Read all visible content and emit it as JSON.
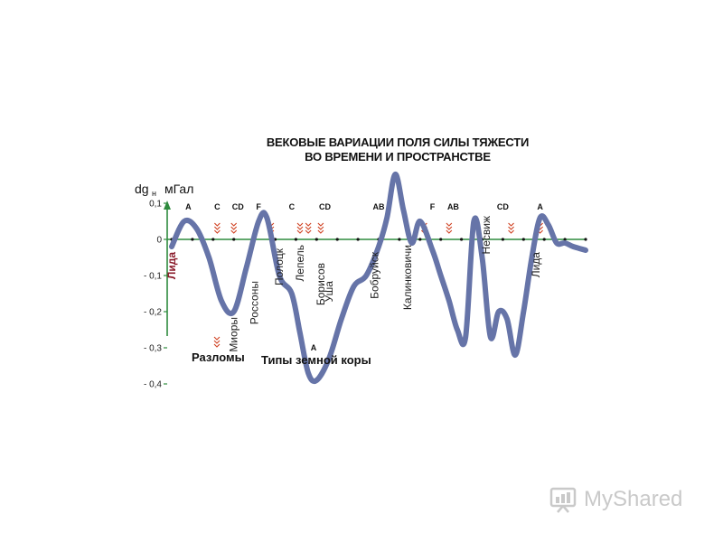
{
  "chart_data": {
    "type": "line",
    "title": "ВЕКОВЫЕ ВАРИАЦИИ ПОЛЯ СИЛЫ ТЯЖЕСТИ",
    "subtitle": "ВО ВРЕМЕНИ И ПРОСТРАНСТВЕ",
    "ylabel_main": "dg",
    "ylabel_sub": "н",
    "ylabel_unit": "мГал",
    "ylim": [
      -0.45,
      0.15
    ],
    "yticks": [
      {
        "value": 0.1,
        "label": "0,1"
      },
      {
        "value": 0,
        "label": "0"
      },
      {
        "value": -0.1,
        "label": "- 0,1"
      },
      {
        "value": -0.2,
        "label": "- 0,2"
      },
      {
        "value": -0.3,
        "label": "- 0,3"
      },
      {
        "value": -0.4,
        "label": "- 0,4"
      }
    ],
    "xlim": [
      0,
      100
    ],
    "series": [
      {
        "color": "#6674a8",
        "x": [
          0,
          3,
          6,
          9,
          12,
          15,
          18,
          21,
          23,
          26,
          29,
          31,
          33,
          35,
          38,
          41,
          44,
          47,
          50,
          52,
          54,
          56,
          58,
          60,
          63,
          65,
          67,
          69,
          71,
          73,
          75,
          77,
          79,
          81,
          83,
          85,
          87,
          89,
          91,
          93,
          95,
          97,
          100
        ],
        "y": [
          -0.02,
          0.05,
          0.03,
          -0.05,
          -0.17,
          -0.2,
          -0.08,
          0.05,
          0.06,
          -0.1,
          -0.15,
          -0.26,
          -0.37,
          -0.39,
          -0.33,
          -0.22,
          -0.13,
          -0.1,
          -0.02,
          0.06,
          0.18,
          0.08,
          -0.01,
          0.05,
          -0.03,
          -0.1,
          -0.17,
          -0.25,
          -0.27,
          0.05,
          -0.05,
          -0.27,
          -0.2,
          -0.22,
          -0.32,
          -0.2,
          -0.05,
          0.06,
          0.04,
          -0.01,
          -0.01,
          -0.02,
          -0.03
        ]
      }
    ],
    "crust_types": [
      {
        "x": 4,
        "label": "A"
      },
      {
        "x": 11,
        "label": "C"
      },
      {
        "x": 16,
        "label": "CD"
      },
      {
        "x": 21,
        "label": "F"
      },
      {
        "x": 29,
        "label": "C"
      },
      {
        "x": 37,
        "label": "CD"
      },
      {
        "x": 50,
        "label": "AB"
      },
      {
        "x": 63,
        "label": "F"
      },
      {
        "x": 68,
        "label": "AB"
      },
      {
        "x": 80,
        "label": "CD"
      },
      {
        "x": 89,
        "label": "A"
      }
    ],
    "faults_x": [
      11,
      15,
      24,
      31,
      33,
      36,
      61,
      67,
      82,
      89
    ],
    "cities": [
      {
        "x": 0,
        "y": -0.02,
        "label": "Лида",
        "color": "#8a1a2a"
      },
      {
        "x": 15,
        "y": -0.2,
        "label": "Миоры",
        "color": "#222"
      },
      {
        "x": 20,
        "y": -0.1,
        "label": "Россоны",
        "color": "#222"
      },
      {
        "x": 26,
        "y": -0.01,
        "label": "Полоцк",
        "color": "#222"
      },
      {
        "x": 31,
        "y": 0.0,
        "label": "Лепель",
        "color": "#222"
      },
      {
        "x": 36,
        "y": -0.05,
        "label": "Борисов",
        "color": "#222"
      },
      {
        "x": 38,
        "y": -0.1,
        "label": "Уша",
        "color": "#222"
      },
      {
        "x": 49,
        "y": -0.02,
        "label": "Бобруйск",
        "color": "#222"
      },
      {
        "x": 57,
        "y": 0.0,
        "label": "Калинковичи",
        "color": "#222"
      },
      {
        "x": 76,
        "y": 0.08,
        "label": "Несвиж",
        "color": "#222"
      },
      {
        "x": 88,
        "y": -0.02,
        "label": "Лида",
        "color": "#222"
      }
    ],
    "legend": [
      {
        "kind": "fault",
        "label": "Разломы"
      },
      {
        "kind": "crust",
        "symbol": "A",
        "label": "Типы земной коры"
      }
    ]
  },
  "watermark": {
    "text": "MyShared",
    "color": "#c9c9c9"
  }
}
